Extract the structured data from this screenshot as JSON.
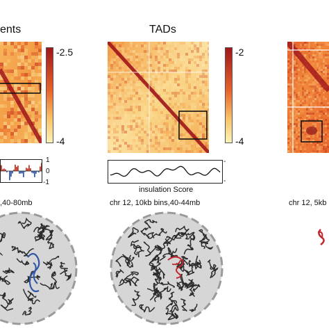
{
  "panels": [
    {
      "title": "ents",
      "colorbar_ticks": [
        "-2.5",
        "-4"
      ],
      "track_ticks": [
        "1",
        "0",
        "-1"
      ],
      "caption": ",40-80mb"
    },
    {
      "title": "TADs",
      "colorbar_ticks": [
        "-2",
        "-4"
      ],
      "track_ticks": [
        "-",
        "-"
      ],
      "track_label": "insulation Score",
      "caption": "chr 12, 10kb bins,40-44mb"
    },
    {
      "caption": "chr 12, 5kb"
    }
  ],
  "colors": {
    "heatmap_high": "#a0161b",
    "heatmap_mid": "#e8642c",
    "heatmap_low": "#fcf2b8",
    "track_positive": "#c0392b",
    "track_negative": "#3a5fb0",
    "chromatin_fiber": "#2b2b2b",
    "nucleus_fill": "#d6d6d6",
    "highlight_red": "#c0272d",
    "highlight_blue": "#2f56a6"
  }
}
